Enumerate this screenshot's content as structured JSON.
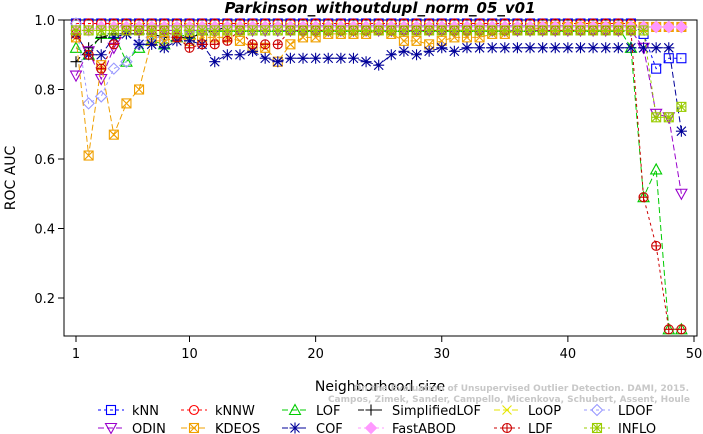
{
  "chart_data": {
    "type": "line",
    "title": "Parkinson_withoutdupl_norm_05_v01",
    "xlabel": "Neighborhood size",
    "ylabel": "ROC AUC",
    "xlim": [
      0,
      50
    ],
    "ylim": [
      0.1,
      1.0
    ],
    "xticks": [
      "10",
      "20",
      "30",
      "40",
      "50"
    ],
    "yticks": [
      "0.2",
      "0.4",
      "0.6",
      "0.8",
      "1.0"
    ],
    "extra_xtick": "1",
    "watermark": "Campos, Zimek, Sander, Campello, Micenkova, Schubert, Assent, Houle",
    "watermark_top": "On the Evaluation of Unsupervised Outlier Detection. DAMI, 2015.",
    "legend_position": "bottom",
    "series": [
      {
        "name": "kNN",
        "color": "#0000ff",
        "marker": "square",
        "dash": "3,3",
        "values": [
          0.99,
          0.99,
          0.99,
          0.99,
          0.99,
          0.99,
          0.99,
          0.99,
          0.99,
          0.99,
          0.99,
          0.99,
          0.99,
          0.99,
          0.99,
          0.99,
          0.99,
          0.99,
          0.99,
          0.99,
          0.99,
          0.99,
          0.99,
          0.99,
          0.99,
          0.99,
          0.99,
          0.99,
          0.99,
          0.99,
          0.99,
          0.99,
          0.99,
          0.99,
          0.99,
          0.99,
          0.99,
          0.99,
          0.99,
          0.99,
          0.99,
          0.99,
          0.99,
          0.99,
          0.99,
          0.96,
          0.86,
          0.89,
          0.89
        ]
      },
      {
        "name": "kNNW",
        "color": "#ff0000",
        "marker": "circle",
        "dash": "3,3",
        "values": [
          0.99,
          0.99,
          0.99,
          0.99,
          0.99,
          0.99,
          0.99,
          0.99,
          0.99,
          0.99,
          0.99,
          0.99,
          0.99,
          0.99,
          0.99,
          0.99,
          0.99,
          0.99,
          0.99,
          0.99,
          0.99,
          0.99,
          0.99,
          0.99,
          0.99,
          0.99,
          0.99,
          0.99,
          0.99,
          0.99,
          0.99,
          0.99,
          0.99,
          0.99,
          0.99,
          0.99,
          0.99,
          0.99,
          0.99,
          0.99,
          0.99,
          0.99,
          0.99,
          0.99,
          0.99,
          0.98,
          0.98,
          0.98,
          0.98
        ]
      },
      {
        "name": "LOF",
        "color": "#00cc00",
        "marker": "triangle",
        "dash": "6,3",
        "values": [
          0.92,
          0.9,
          0.96,
          0.96,
          0.88,
          0.92,
          0.94,
          0.93,
          0.95,
          0.96,
          0.97,
          0.98,
          0.98,
          0.98,
          0.98,
          0.98,
          0.98,
          0.98,
          0.98,
          0.98,
          0.98,
          0.98,
          0.98,
          0.98,
          0.98,
          0.98,
          0.98,
          0.98,
          0.98,
          0.98,
          0.98,
          0.98,
          0.98,
          0.98,
          0.98,
          0.98,
          0.98,
          0.98,
          0.98,
          0.98,
          0.98,
          0.98,
          0.98,
          0.98,
          0.92,
          0.49,
          0.57,
          0.11,
          0.11
        ]
      },
      {
        "name": "SimplifiedLOF",
        "color": "#000000",
        "marker": "plus",
        "dash": "6,3",
        "values": [
          0.88,
          0.92,
          0.95,
          0.96,
          0.96,
          0.96,
          0.96,
          0.95,
          0.95,
          0.95,
          0.96,
          0.97,
          0.98,
          0.98,
          0.98,
          0.98,
          0.98,
          0.98,
          0.98,
          0.98,
          0.98,
          0.98,
          0.98,
          0.98,
          0.98,
          0.98,
          0.98,
          0.98,
          0.98,
          0.98,
          0.98,
          0.98,
          0.98,
          0.98,
          0.98,
          0.98,
          0.98,
          0.98,
          0.98,
          0.98,
          0.98,
          0.98,
          0.98,
          0.98,
          0.98,
          0.98,
          0.98,
          0.98,
          0.98
        ]
      },
      {
        "name": "LoOP",
        "color": "#e6e600",
        "marker": "x",
        "dash": "6,3",
        "values": [
          0.95,
          0.97,
          0.97,
          0.98,
          0.98,
          0.98,
          0.98,
          0.98,
          0.98,
          0.98,
          0.98,
          0.98,
          0.98,
          0.98,
          0.98,
          0.98,
          0.98,
          0.98,
          0.98,
          0.98,
          0.98,
          0.98,
          0.98,
          0.98,
          0.98,
          0.98,
          0.98,
          0.98,
          0.98,
          0.98,
          0.98,
          0.98,
          0.98,
          0.98,
          0.98,
          0.98,
          0.98,
          0.98,
          0.98,
          0.98,
          0.98,
          0.98,
          0.98,
          0.98,
          0.98,
          0.98,
          0.98,
          0.98,
          0.98
        ]
      },
      {
        "name": "LDOF",
        "color": "#9999ff",
        "marker": "diamond",
        "dash": "3,3",
        "values": [
          0.99,
          0.76,
          0.78,
          0.86,
          0.88,
          0.93,
          0.95,
          0.95,
          0.96,
          0.97,
          0.97,
          0.98,
          0.98,
          0.98,
          0.98,
          0.98,
          0.98,
          0.98,
          0.98,
          0.98,
          0.98,
          0.98,
          0.98,
          0.98,
          0.98,
          0.98,
          0.98,
          0.98,
          0.98,
          0.98,
          0.98,
          0.98,
          0.98,
          0.98,
          0.98,
          0.98,
          0.98,
          0.98,
          0.98,
          0.98,
          0.98,
          0.98,
          0.98,
          0.98,
          0.98,
          0.98,
          0.98,
          0.98,
          0.98
        ]
      },
      {
        "name": "ODIN",
        "color": "#9900cc",
        "marker": "invtriangle",
        "dash": "6,3",
        "values": [
          0.84,
          0.91,
          0.83,
          0.92,
          0.97,
          0.97,
          0.97,
          0.97,
          0.97,
          0.97,
          0.97,
          0.97,
          0.97,
          0.97,
          0.97,
          0.97,
          0.97,
          0.97,
          0.97,
          0.97,
          0.97,
          0.97,
          0.97,
          0.97,
          0.97,
          0.97,
          0.97,
          0.97,
          0.97,
          0.97,
          0.97,
          0.97,
          0.97,
          0.97,
          0.97,
          0.97,
          0.97,
          0.97,
          0.97,
          0.97,
          0.97,
          0.97,
          0.97,
          0.97,
          0.97,
          0.92,
          0.73,
          0.72,
          0.5
        ]
      },
      {
        "name": "KDEOS",
        "color": "#f0a000",
        "marker": "squarex",
        "dash": "6,3",
        "values": [
          0.95,
          0.61,
          0.87,
          0.67,
          0.76,
          0.8,
          0.94,
          0.94,
          0.95,
          0.94,
          0.95,
          0.95,
          0.95,
          0.94,
          0.92,
          0.92,
          0.88,
          0.93,
          0.95,
          0.95,
          0.96,
          0.96,
          0.96,
          0.96,
          0.97,
          0.96,
          0.94,
          0.94,
          0.93,
          0.94,
          0.95,
          0.95,
          0.95,
          0.96,
          0.96,
          0.97,
          0.97,
          0.98,
          0.98,
          0.98,
          0.98,
          0.98,
          0.98,
          0.98,
          0.98,
          0.98,
          0.98,
          0.98,
          0.98
        ]
      },
      {
        "name": "COF",
        "color": "#000099",
        "marker": "asterisk",
        "dash": "6,3",
        "values": [
          0.96,
          0.9,
          0.9,
          0.95,
          0.96,
          0.93,
          0.93,
          0.92,
          0.94,
          0.94,
          0.93,
          0.88,
          0.9,
          0.9,
          0.91,
          0.89,
          0.88,
          0.89,
          0.89,
          0.89,
          0.89,
          0.89,
          0.89,
          0.88,
          0.87,
          0.9,
          0.91,
          0.9,
          0.91,
          0.92,
          0.91,
          0.92,
          0.92,
          0.92,
          0.92,
          0.92,
          0.92,
          0.92,
          0.92,
          0.92,
          0.92,
          0.92,
          0.92,
          0.92,
          0.92,
          0.92,
          0.92,
          0.92,
          0.68
        ]
      },
      {
        "name": "FastABOD",
        "color": "#ff99ff",
        "marker": "diamondfill",
        "dash": "3,3",
        "values": [
          0.97,
          0.97,
          0.98,
          0.98,
          0.98,
          0.98,
          0.98,
          0.98,
          0.98,
          0.98,
          0.98,
          0.98,
          0.98,
          0.98,
          0.98,
          0.98,
          0.98,
          0.98,
          0.98,
          0.98,
          0.98,
          0.98,
          0.98,
          0.98,
          0.98,
          0.98,
          0.98,
          0.98,
          0.98,
          0.98,
          0.98,
          0.98,
          0.98,
          0.98,
          0.98,
          0.98,
          0.98,
          0.98,
          0.98,
          0.98,
          0.98,
          0.98,
          0.98,
          0.98,
          0.98,
          0.98,
          0.98,
          0.98,
          0.98
        ]
      },
      {
        "name": "LDF",
        "color": "#cc0000",
        "marker": "circleplus",
        "dash": "3,3",
        "values": [
          0.96,
          0.9,
          0.86,
          0.93,
          0.97,
          0.97,
          0.97,
          0.97,
          0.95,
          0.92,
          0.93,
          0.93,
          0.94,
          0.97,
          0.93,
          0.93,
          0.93,
          0.97,
          0.97,
          0.97,
          0.97,
          0.97,
          0.97,
          0.97,
          0.97,
          0.97,
          0.97,
          0.97,
          0.97,
          0.97,
          0.97,
          0.97,
          0.97,
          0.97,
          0.97,
          0.97,
          0.97,
          0.97,
          0.97,
          0.97,
          0.97,
          0.97,
          0.97,
          0.97,
          0.97,
          0.49,
          0.35,
          0.11,
          0.11
        ]
      },
      {
        "name": "INFLO",
        "color": "#99cc00",
        "marker": "squarestar",
        "dash": "3,3",
        "values": [
          0.97,
          0.97,
          0.97,
          0.97,
          0.97,
          0.97,
          0.97,
          0.97,
          0.97,
          0.97,
          0.97,
          0.97,
          0.97,
          0.97,
          0.97,
          0.97,
          0.97,
          0.97,
          0.97,
          0.97,
          0.97,
          0.97,
          0.97,
          0.97,
          0.97,
          0.97,
          0.97,
          0.97,
          0.97,
          0.97,
          0.97,
          0.97,
          0.97,
          0.97,
          0.97,
          0.97,
          0.97,
          0.97,
          0.97,
          0.97,
          0.97,
          0.97,
          0.97,
          0.97,
          0.97,
          0.97,
          0.72,
          0.72,
          0.75
        ]
      }
    ]
  }
}
